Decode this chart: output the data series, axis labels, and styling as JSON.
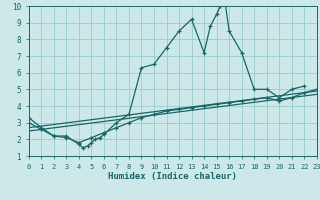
{
  "xlabel": "Humidex (Indice chaleur)",
  "bg_color": "#cce8e8",
  "grid_color": "#99cccc",
  "line_color": "#1a6666",
  "xlim": [
    0,
    23
  ],
  "ylim": [
    1,
    10
  ],
  "xtick_labels": [
    "0",
    "1",
    "2",
    "3",
    "4",
    "5",
    "6",
    "7",
    "8",
    "9",
    "10",
    "11",
    "12",
    "13",
    "14",
    "15",
    "16",
    "17",
    "18",
    "19",
    "20",
    "21",
    "22",
    "23"
  ],
  "ytick_labels": [
    "1",
    "2",
    "3",
    "4",
    "5",
    "6",
    "7",
    "8",
    "9",
    "10"
  ],
  "line0_x": [
    0,
    1,
    2,
    3,
    4,
    4.3,
    4.7,
    5,
    5.3,
    5.7,
    6,
    7,
    8,
    9,
    10,
    11,
    12,
    13,
    14,
    14.5,
    15,
    15.3,
    15.7,
    16,
    17,
    18,
    19,
    20,
    21,
    22,
    23
  ],
  "line0_y": [
    3.3,
    2.7,
    2.2,
    2.2,
    1.7,
    1.5,
    1.6,
    1.8,
    2.0,
    2.1,
    2.3,
    3.0,
    3.5,
    6.3,
    6.5,
    7.5,
    8.5,
    9.2,
    7.2,
    8.8,
    9.5,
    10.0,
    10.1,
    8.5,
    7.2,
    5.0,
    5.0,
    4.5,
    5.0,
    5.2,
    5.3
  ],
  "line1_x": [
    0,
    1,
    2,
    3,
    4,
    5,
    6,
    7,
    8,
    9,
    10,
    11,
    12,
    13,
    14,
    15,
    16,
    17,
    18,
    19,
    20,
    21,
    22,
    23
  ],
  "line1_y": [
    3.0,
    2.6,
    2.2,
    2.1,
    1.8,
    2.1,
    2.4,
    2.7,
    3.0,
    3.3,
    3.5,
    3.7,
    3.8,
    3.9,
    4.0,
    4.1,
    4.2,
    4.3,
    4.4,
    4.5,
    4.3,
    4.5,
    4.8,
    5.0
  ],
  "line2_x": [
    0,
    23
  ],
  "line2_y": [
    2.7,
    4.9
  ],
  "line3_x": [
    0,
    23
  ],
  "line3_y": [
    2.5,
    4.7
  ]
}
